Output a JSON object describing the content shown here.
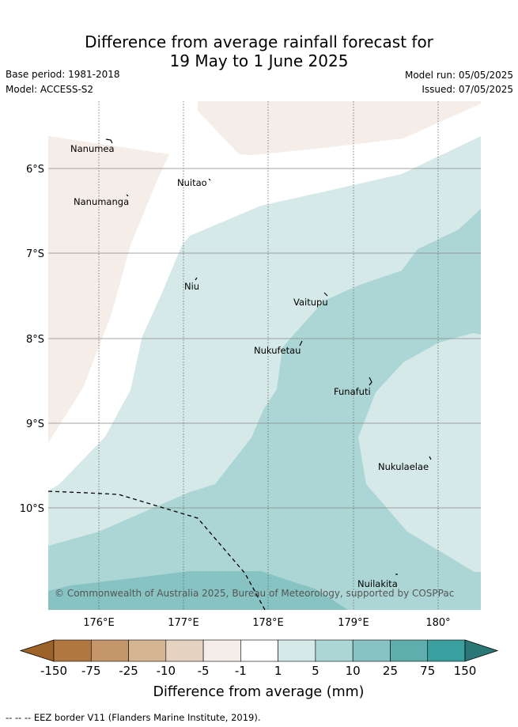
{
  "header": {
    "title_line1": "Difference from average rainfall forecast for",
    "title_line2": "19 May to 1 June 2025",
    "base_period": "Base period: 1981-2018",
    "model": "Model: ACCESS-S2",
    "model_run": "Model run: 05/05/2025",
    "issued": "Issued: 07/05/2025"
  },
  "map": {
    "lat_labels": [
      "6°S",
      "7°S",
      "8°S",
      "9°S",
      "10°S"
    ],
    "lon_labels": [
      "176°E",
      "177°E",
      "178°E",
      "179°E",
      "180°"
    ],
    "places": [
      {
        "name": "Nanumea"
      },
      {
        "name": "Nanumanga"
      },
      {
        "name": "Nuitao"
      },
      {
        "name": "Niu"
      },
      {
        "name": "Vaitupu"
      },
      {
        "name": "Nukufetau"
      },
      {
        "name": "Funafuti"
      },
      {
        "name": "Nukulaelae"
      },
      {
        "name": "Nuilakita"
      }
    ],
    "copyright": "© Commonwealth of Australia 2025, Bureau of Meteorology, supported by COSPPac"
  },
  "colorbar": {
    "colors": [
      "#9c6228",
      "#b07840",
      "#c4966a",
      "#d6b594",
      "#e6d2c0",
      "#f5ede8",
      "#ffffff",
      "#d5e9e8",
      "#acd6d5",
      "#86c3c2",
      "#5eaeae",
      "#3aa09f",
      "#2b7777"
    ],
    "ticks": [
      "-150",
      "-75",
      "-25",
      "-10",
      "-5",
      "-1",
      "1",
      "5",
      "10",
      "25",
      "75",
      "150"
    ],
    "label": "Difference from average (mm)"
  },
  "footer": "--  --  -- EEZ border V11 (Flanders Marine Institute, 2019)."
}
